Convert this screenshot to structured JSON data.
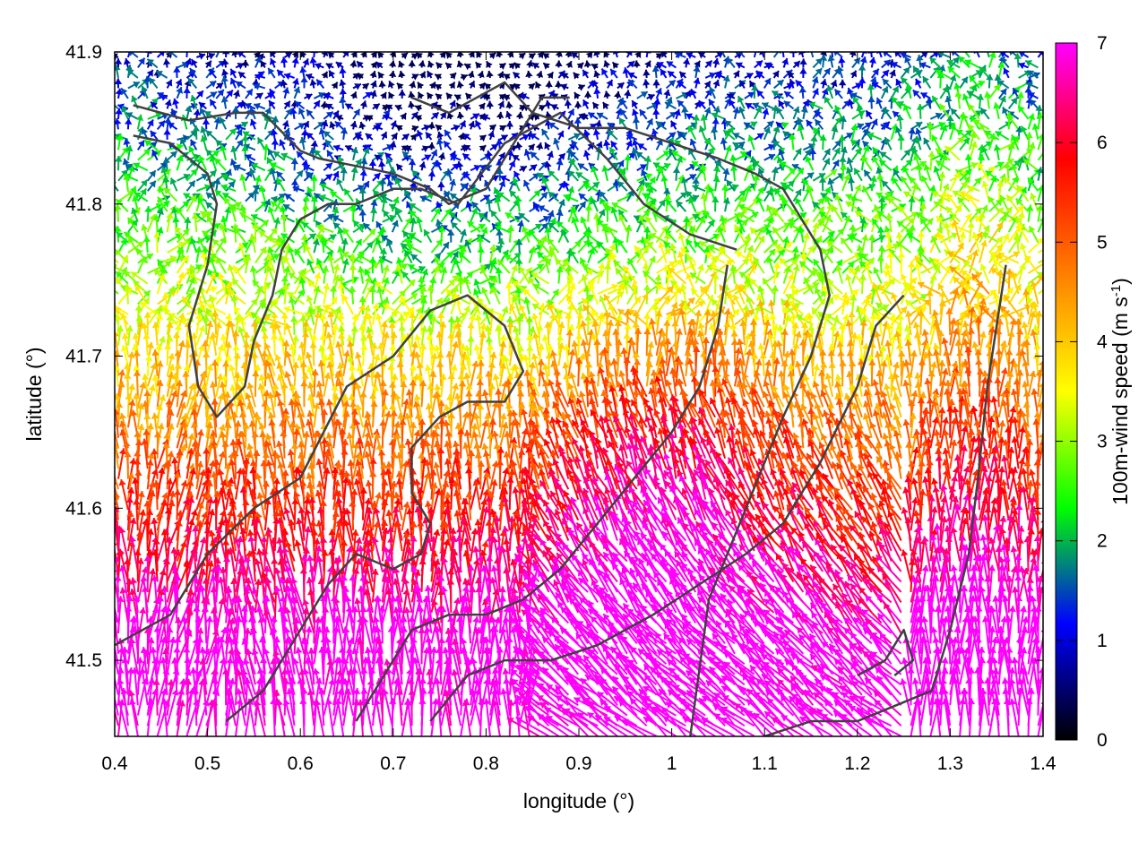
{
  "chart_data": {
    "type": "vector-field",
    "xlabel": "longitude (°)",
    "ylabel": "latitude (°)",
    "xlim": [
      0.4,
      1.4
    ],
    "ylim": [
      41.45,
      41.9
    ],
    "xticks": [
      "0.4",
      "0.5",
      "0.6",
      "0.7",
      "0.8",
      "0.9",
      "1",
      "1.1",
      "1.2",
      "1.3",
      "1.4"
    ],
    "yticks": [
      "41.5",
      "41.6",
      "41.7",
      "41.8",
      "41.9"
    ],
    "colorbar": {
      "label_main": "100m-wind speed (m s",
      "label_sup": "-1",
      "label_end": ")",
      "range": [
        0,
        7
      ],
      "ticks": [
        "0",
        "1",
        "2",
        "3",
        "4",
        "5",
        "6",
        "7"
      ],
      "colormap": [
        "#000000",
        "#0000ff",
        "#00ff00",
        "#ffff00",
        "#ff8000",
        "#ff0000",
        "#ff00ff"
      ]
    },
    "contours": [
      [
        [
          0.42,
          41.865
        ],
        [
          0.48,
          41.855
        ],
        [
          0.53,
          41.86
        ],
        [
          0.56,
          41.86
        ],
        [
          0.6,
          41.835
        ],
        [
          0.62,
          41.83
        ],
        [
          0.66,
          41.825
        ],
        [
          0.7,
          41.82
        ],
        [
          0.74,
          41.81
        ],
        [
          0.76,
          41.8
        ],
        [
          0.8,
          41.81
        ],
        [
          0.83,
          41.84
        ],
        [
          0.86,
          41.87
        ],
        [
          0.89,
          41.87
        ]
      ],
      [
        [
          0.42,
          41.845
        ],
        [
          0.46,
          41.84
        ],
        [
          0.5,
          41.82
        ],
        [
          0.51,
          41.8
        ],
        [
          0.5,
          41.76
        ],
        [
          0.48,
          41.72
        ],
        [
          0.49,
          41.68
        ],
        [
          0.51,
          41.66
        ],
        [
          0.54,
          41.68
        ],
        [
          0.55,
          41.71
        ],
        [
          0.57,
          41.74
        ],
        [
          0.58,
          41.77
        ],
        [
          0.6,
          41.79
        ],
        [
          0.63,
          41.8
        ],
        [
          0.66,
          41.8
        ],
        [
          0.7,
          41.81
        ],
        [
          0.73,
          41.81
        ],
        [
          0.77,
          41.8
        ],
        [
          0.82,
          41.84
        ],
        [
          0.88,
          41.86
        ],
        [
          0.93,
          41.83
        ],
        [
          0.97,
          41.8
        ],
        [
          1.02,
          41.78
        ],
        [
          1.07,
          41.77
        ]
      ],
      [
        [
          0.72,
          41.87
        ],
        [
          0.76,
          41.86
        ],
        [
          0.79,
          41.87
        ],
        [
          0.82,
          41.88
        ],
        [
          0.85,
          41.86
        ],
        [
          0.9,
          41.85
        ],
        [
          0.95,
          41.85
        ],
        [
          1.0,
          41.84
        ],
        [
          1.05,
          41.83
        ],
        [
          1.09,
          41.82
        ],
        [
          1.12,
          41.81
        ],
        [
          1.16,
          41.77
        ],
        [
          1.17,
          41.74
        ],
        [
          1.15,
          41.7
        ],
        [
          1.12,
          41.66
        ],
        [
          1.08,
          41.6
        ],
        [
          1.04,
          41.54
        ],
        [
          1.02,
          41.45
        ]
      ],
      [
        [
          0.52,
          41.46
        ],
        [
          0.56,
          41.48
        ],
        [
          0.58,
          41.5
        ],
        [
          0.6,
          41.52
        ],
        [
          0.63,
          41.55
        ],
        [
          0.66,
          41.57
        ],
        [
          0.7,
          41.56
        ],
        [
          0.73,
          41.57
        ],
        [
          0.74,
          41.59
        ],
        [
          0.72,
          41.61
        ],
        [
          0.72,
          41.64
        ],
        [
          0.75,
          41.66
        ],
        [
          0.78,
          41.67
        ],
        [
          0.82,
          41.67
        ],
        [
          0.84,
          41.69
        ],
        [
          0.82,
          41.72
        ],
        [
          0.78,
          41.74
        ],
        [
          0.74,
          41.73
        ],
        [
          0.7,
          41.7
        ],
        [
          0.65,
          41.68
        ],
        [
          0.6,
          41.62
        ],
        [
          0.55,
          41.6
        ],
        [
          0.5,
          41.57
        ],
        [
          0.46,
          41.53
        ],
        [
          0.4,
          41.51
        ]
      ],
      [
        [
          0.66,
          41.46
        ],
        [
          0.7,
          41.5
        ],
        [
          0.72,
          41.52
        ],
        [
          0.76,
          41.53
        ],
        [
          0.8,
          41.53
        ],
        [
          0.84,
          41.54
        ],
        [
          0.88,
          41.56
        ],
        [
          0.92,
          41.59
        ],
        [
          0.96,
          41.62
        ],
        [
          1.0,
          41.65
        ],
        [
          1.03,
          41.68
        ],
        [
          1.05,
          41.72
        ],
        [
          1.06,
          41.76
        ]
      ],
      [
        [
          0.74,
          41.46
        ],
        [
          0.78,
          41.49
        ],
        [
          0.82,
          41.5
        ],
        [
          0.87,
          41.5
        ],
        [
          0.92,
          41.51
        ],
        [
          0.98,
          41.53
        ],
        [
          1.03,
          41.55
        ],
        [
          1.08,
          41.57
        ],
        [
          1.12,
          41.59
        ],
        [
          1.16,
          41.63
        ],
        [
          1.2,
          41.68
        ],
        [
          1.22,
          41.72
        ],
        [
          1.25,
          41.74
        ]
      ],
      [
        [
          1.1,
          41.45
        ],
        [
          1.15,
          41.46
        ],
        [
          1.2,
          41.46
        ],
        [
          1.24,
          41.47
        ],
        [
          1.28,
          41.48
        ],
        [
          1.3,
          41.52
        ],
        [
          1.32,
          41.57
        ],
        [
          1.33,
          41.62
        ],
        [
          1.34,
          41.68
        ],
        [
          1.35,
          41.72
        ],
        [
          1.36,
          41.76
        ]
      ],
      [
        [
          1.2,
          41.49
        ],
        [
          1.23,
          41.5
        ],
        [
          1.25,
          41.52
        ],
        [
          1.26,
          41.5
        ],
        [
          1.24,
          41.49
        ]
      ]
    ]
  }
}
